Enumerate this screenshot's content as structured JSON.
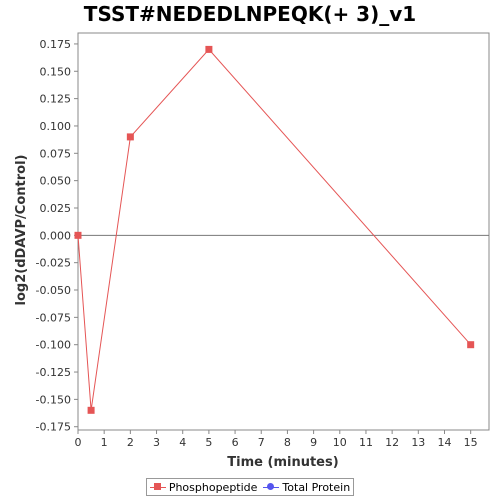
{
  "chart_data": {
    "type": "line",
    "title": "TSST#NEDEDLNPEQK(+ 3)_v1",
    "xlabel": "Time (minutes)",
    "ylabel": "log2(dDAVP/Control)",
    "xlim": [
      0,
      15.7
    ],
    "ylim": [
      -0.178,
      0.185
    ],
    "x_ticks": [
      0,
      1,
      2,
      3,
      4,
      5,
      6,
      7,
      8,
      9,
      10,
      11,
      12,
      13,
      14,
      15
    ],
    "x_tick_labels": [
      "0",
      "1",
      "2",
      "3",
      "4",
      "5",
      "6",
      "7",
      "8",
      "9",
      "10",
      "11",
      "12",
      "13",
      "14",
      "15"
    ],
    "y_ticks": [
      0.175,
      0.15,
      0.125,
      0.1,
      0.075,
      0.05,
      0.025,
      0.0,
      -0.025,
      -0.05,
      -0.075,
      -0.1,
      -0.125,
      -0.15,
      -0.175
    ],
    "y_tick_labels": [
      "0.175",
      "0.150",
      "0.125",
      "0.100",
      "0.075",
      "0.050",
      "0.025",
      "0.000",
      "-0.025",
      "-0.050",
      "-0.075",
      "-0.100",
      "-0.125",
      "-0.150",
      "-0.175"
    ],
    "grid": false,
    "zero_line": true,
    "legend_position": "bottom",
    "series": [
      {
        "name": "Phosphopeptide",
        "color": "#e55555",
        "marker": "square",
        "x": [
          0,
          0.5,
          2,
          5,
          15
        ],
        "y": [
          0.0,
          -0.16,
          0.09,
          0.17,
          -0.1
        ]
      },
      {
        "name": "Total Protein",
        "color": "#5555ee",
        "marker": "circle",
        "x": [],
        "y": []
      }
    ]
  }
}
